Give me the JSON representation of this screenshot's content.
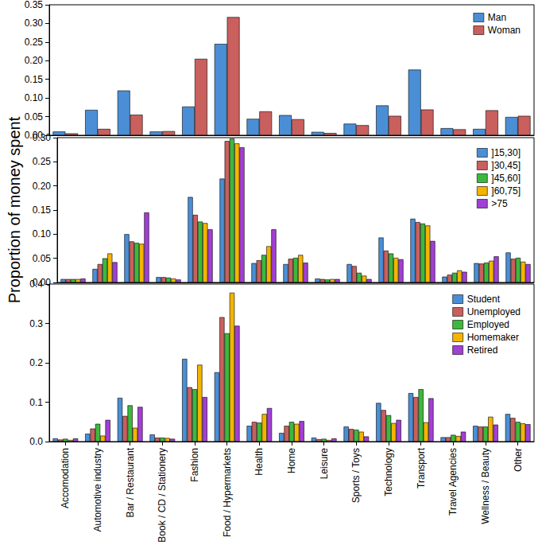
{
  "chart_data": [
    {
      "type": "bar",
      "tick_labels": "y",
      "grid": false,
      "legend": "top-right",
      "categories": [
        "Accomodation",
        "Automotive industry",
        "Bar / Restaurant",
        "Book / CD / Stationery",
        "Fashion",
        "Food / Hypermarkets",
        "Health",
        "Home",
        "Leisure",
        "Sports / Toys",
        "Technology",
        "Transport",
        "Travel Agencies",
        "Wellness / Beauty",
        "Other"
      ],
      "ylim": [
        0,
        0.35
      ],
      "yticks": [
        {
          "value": 0,
          "label": "0.00"
        },
        {
          "value": 0.05,
          "label": "0.05"
        },
        {
          "value": 0.1,
          "label": "0.10"
        },
        {
          "value": 0.15,
          "label": "0.15"
        },
        {
          "value": 0.2,
          "label": "0.20"
        },
        {
          "value": 0.25,
          "label": "0.25"
        },
        {
          "value": 0.3,
          "label": "0.30"
        },
        {
          "value": 0.35,
          "label": "0.35"
        }
      ],
      "series": [
        {
          "name": "Man",
          "color": "#4a8fd6",
          "values": [
            0.01,
            0.068,
            0.12,
            0.01,
            0.077,
            0.245,
            0.044,
            0.054,
            0.009,
            0.031,
            0.08,
            0.176,
            0.019,
            0.017,
            0.049
          ]
        },
        {
          "name": "Woman",
          "color": "#c9605e",
          "values": [
            0.005,
            0.017,
            0.055,
            0.011,
            0.205,
            0.317,
            0.064,
            0.043,
            0.006,
            0.027,
            0.052,
            0.069,
            0.016,
            0.067,
            0.052
          ]
        }
      ]
    },
    {
      "type": "bar",
      "tick_labels": "y",
      "grid": false,
      "legend": "top-right",
      "ylabel": "Proportion of money spent",
      "categories": [
        "Accomodation",
        "Automotive industry",
        "Bar / Restaurant",
        "Book / CD / Stationery",
        "Fashion",
        "Food / Hypermarkets",
        "Health",
        "Home",
        "Leisure",
        "Sports / Toys",
        "Technology",
        "Transport",
        "Travel Agencies",
        "Wellness / Beauty",
        "Other"
      ],
      "ylim": [
        0,
        0.3
      ],
      "yticks": [
        {
          "value": 0,
          "label": "0.00"
        },
        {
          "value": 0.05,
          "label": "0.05"
        },
        {
          "value": 0.1,
          "label": "0.10"
        },
        {
          "value": 0.15,
          "label": "0.15"
        },
        {
          "value": 0.2,
          "label": "0.20"
        },
        {
          "value": 0.25,
          "label": "0.25"
        },
        {
          "value": 0.3,
          "label": "0.30"
        }
      ],
      "series": [
        {
          "name": "]15,30]",
          "color": "#4a8fd6",
          "values": [
            0.007,
            0.028,
            0.1,
            0.011,
            0.177,
            0.215,
            0.04,
            0.038,
            0.008,
            0.038,
            0.093,
            0.132,
            0.012,
            0.04,
            0.062
          ]
        },
        {
          "name": "]30,45]",
          "color": "#c9605e",
          "values": [
            0.007,
            0.038,
            0.085,
            0.011,
            0.14,
            0.293,
            0.046,
            0.049,
            0.007,
            0.034,
            0.066,
            0.125,
            0.016,
            0.039,
            0.049
          ]
        },
        {
          "name": "]45,60]",
          "color": "#3cb93c",
          "values": [
            0.007,
            0.05,
            0.082,
            0.01,
            0.126,
            0.298,
            0.057,
            0.051,
            0.006,
            0.02,
            0.06,
            0.122,
            0.02,
            0.041,
            0.051
          ]
        },
        {
          "name": "]60,75]",
          "color": "#f4b400",
          "values": [
            0.007,
            0.06,
            0.08,
            0.008,
            0.123,
            0.288,
            0.075,
            0.057,
            0.007,
            0.014,
            0.051,
            0.118,
            0.025,
            0.045,
            0.043
          ]
        },
        {
          "name": ">75",
          "color": "#a23fd4",
          "values": [
            0.008,
            0.042,
            0.145,
            0.006,
            0.11,
            0.28,
            0.11,
            0.041,
            0.007,
            0.007,
            0.048,
            0.086,
            0.022,
            0.054,
            0.038
          ]
        }
      ]
    },
    {
      "type": "bar",
      "tick_labels": true,
      "grid": false,
      "legend": "top-right",
      "categories": [
        "Accomodation",
        "Automotive industry",
        "Bar / Restaurant",
        "Book / CD / Stationery",
        "Fashion",
        "Food / Hypermarkets",
        "Health",
        "Home",
        "Leisure",
        "Sports / Toys",
        "Technology",
        "Transport",
        "Travel Agencies",
        "Wellness / Beauty",
        "Other"
      ],
      "ylim": [
        0,
        0.4
      ],
      "yticks": [
        {
          "value": 0,
          "label": "0.0"
        },
        {
          "value": 0.1,
          "label": "0.1"
        },
        {
          "value": 0.2,
          "label": "0.2"
        },
        {
          "value": 0.3,
          "label": "0.3"
        },
        {
          "value": 0.4,
          "label": "0.4"
        }
      ],
      "series": [
        {
          "name": "Student",
          "color": "#4a8fd6",
          "values": [
            0.008,
            0.02,
            0.111,
            0.018,
            0.21,
            0.176,
            0.04,
            0.022,
            0.01,
            0.038,
            0.098,
            0.123,
            0.011,
            0.04,
            0.07
          ]
        },
        {
          "name": "Unemployed",
          "color": "#c9605e",
          "values": [
            0.005,
            0.033,
            0.065,
            0.01,
            0.138,
            0.316,
            0.05,
            0.04,
            0.006,
            0.032,
            0.08,
            0.113,
            0.011,
            0.038,
            0.06
          ]
        },
        {
          "name": "Employed",
          "color": "#3cb93c",
          "values": [
            0.007,
            0.045,
            0.092,
            0.01,
            0.133,
            0.275,
            0.048,
            0.05,
            0.007,
            0.03,
            0.067,
            0.133,
            0.017,
            0.038,
            0.05
          ]
        },
        {
          "name": "Homemaker",
          "color": "#f4b400",
          "values": [
            0.004,
            0.015,
            0.035,
            0.009,
            0.195,
            0.378,
            0.07,
            0.045,
            0.004,
            0.025,
            0.047,
            0.049,
            0.014,
            0.063,
            0.046
          ]
        },
        {
          "name": "Retired",
          "color": "#a23fd4",
          "values": [
            0.008,
            0.055,
            0.088,
            0.007,
            0.113,
            0.294,
            0.085,
            0.052,
            0.008,
            0.013,
            0.055,
            0.11,
            0.025,
            0.043,
            0.044
          ]
        }
      ]
    }
  ]
}
